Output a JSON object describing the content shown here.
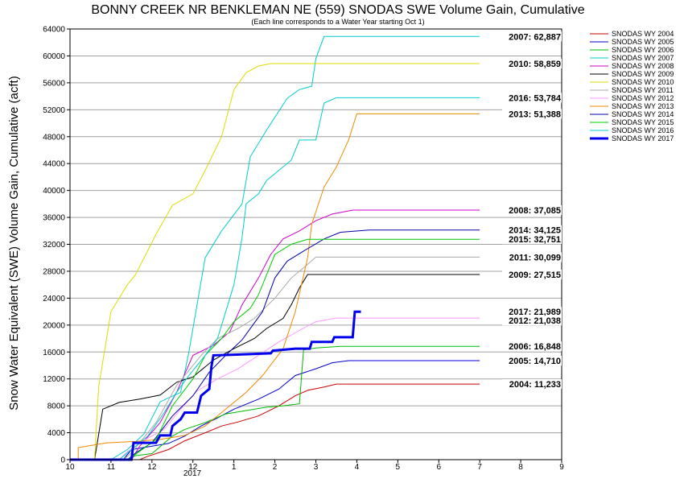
{
  "chart_data": {
    "type": "line",
    "title": "BONNY CREEK NR BENKLEMAN NE (559) SNODAS SWE Volume Gain, Cumulative",
    "subtitle": "(Each line corresponds to a Water Year starting Oct 1)",
    "ylabel": "Snow Water Equivalent (SWE) Volume Gain, Cumulative (acft)",
    "xlabel": "",
    "year_label": "2017",
    "ylim": [
      0,
      64000
    ],
    "xlim": [
      10,
      22
    ],
    "y_ticks": [
      "0",
      "4000",
      "8000",
      "12000",
      "16000",
      "20000",
      "24000",
      "28000",
      "32000",
      "36000",
      "40000",
      "44000",
      "48000",
      "52000",
      "56000",
      "60000",
      "64000"
    ],
    "x_ticks": [
      "10",
      "11",
      "12",
      "12",
      "1",
      "2",
      "3",
      "4",
      "5",
      "6",
      "7",
      "8",
      "9"
    ],
    "grid": "horizontal",
    "legend_position": "right",
    "series": [
      {
        "name": "SNODAS WY 2004",
        "color": "#cc0000",
        "width": 1,
        "end_label": "2004: 11,233",
        "points": [
          [
            10,
            0
          ],
          [
            11.7,
            0
          ],
          [
            11.9,
            500
          ],
          [
            12.4,
            1500
          ],
          [
            12.8,
            2800
          ],
          [
            13.3,
            4000
          ],
          [
            13.7,
            5000
          ],
          [
            14.1,
            5600
          ],
          [
            14.6,
            6500
          ],
          [
            15.1,
            8000
          ],
          [
            15.5,
            9500
          ],
          [
            15.8,
            10300
          ],
          [
            16.2,
            10800
          ],
          [
            16.5,
            11233
          ],
          [
            20,
            11233
          ]
        ]
      },
      {
        "name": "SNODAS WY 2005",
        "color": "#0000cc",
        "width": 1,
        "end_label": "2005: 14,710",
        "points": [
          [
            10,
            0
          ],
          [
            11.3,
            0
          ],
          [
            11.5,
            1500
          ],
          [
            12.0,
            2000
          ],
          [
            12.4,
            2400
          ],
          [
            12.8,
            3500
          ],
          [
            13.2,
            5000
          ],
          [
            13.6,
            6200
          ],
          [
            14.0,
            7500
          ],
          [
            14.6,
            9000
          ],
          [
            15.1,
            10500
          ],
          [
            15.5,
            12500
          ],
          [
            16.0,
            13500
          ],
          [
            16.4,
            14400
          ],
          [
            16.8,
            14710
          ],
          [
            20,
            14710
          ]
        ]
      },
      {
        "name": "SNODAS WY 2006",
        "color": "#00bb00",
        "width": 1,
        "end_label": "2006: 16,848",
        "points": [
          [
            10,
            0
          ],
          [
            11.4,
            0
          ],
          [
            11.6,
            600
          ],
          [
            12.0,
            900
          ],
          [
            12.5,
            3500
          ],
          [
            12.8,
            4500
          ],
          [
            13.3,
            5500
          ],
          [
            13.8,
            6800
          ],
          [
            14.3,
            7300
          ],
          [
            14.8,
            7800
          ],
          [
            15.2,
            8000
          ],
          [
            15.6,
            8300
          ],
          [
            15.7,
            16300
          ],
          [
            16.0,
            16600
          ],
          [
            16.6,
            16848
          ],
          [
            20,
            16848
          ]
        ]
      },
      {
        "name": "SNODAS WY 2007",
        "color": "#00cccc",
        "width": 1,
        "end_label": "2007: 62,887",
        "points": [
          [
            10,
            0
          ],
          [
            11.0,
            0
          ],
          [
            11.4,
            1500
          ],
          [
            11.8,
            3800
          ],
          [
            12.2,
            8600
          ],
          [
            12.7,
            10000
          ],
          [
            12.9,
            16000
          ],
          [
            13.3,
            30000
          ],
          [
            13.7,
            34000
          ],
          [
            14.2,
            38000
          ],
          [
            14.4,
            45000
          ],
          [
            14.8,
            49000
          ],
          [
            15.3,
            53700
          ],
          [
            15.6,
            55000
          ],
          [
            15.9,
            55500
          ],
          [
            16.0,
            59600
          ],
          [
            16.2,
            62887
          ],
          [
            20,
            62887
          ]
        ]
      },
      {
        "name": "SNODAS WY 2008",
        "color": "#cc00cc",
        "width": 1,
        "end_label": "2008: 37,085",
        "points": [
          [
            10,
            0
          ],
          [
            11.5,
            0
          ],
          [
            11.7,
            2000
          ],
          [
            12.2,
            5500
          ],
          [
            12.6,
            10000
          ],
          [
            13.0,
            15500
          ],
          [
            13.5,
            17000
          ],
          [
            13.9,
            19000
          ],
          [
            14.2,
            23000
          ],
          [
            14.6,
            27000
          ],
          [
            14.9,
            30500
          ],
          [
            15.2,
            32800
          ],
          [
            15.6,
            34000
          ],
          [
            16.0,
            35500
          ],
          [
            16.4,
            36500
          ],
          [
            16.9,
            37085
          ],
          [
            20,
            37085
          ]
        ]
      },
      {
        "name": "SNODAS WY 2009",
        "color": "#000000",
        "width": 1,
        "end_label": "2009: 27,515",
        "points": [
          [
            10,
            0
          ],
          [
            10.6,
            0
          ],
          [
            10.8,
            7500
          ],
          [
            11.2,
            8500
          ],
          [
            11.7,
            9000
          ],
          [
            12.2,
            9600
          ],
          [
            12.6,
            11500
          ],
          [
            13.0,
            12300
          ],
          [
            13.5,
            14800
          ],
          [
            14.0,
            16500
          ],
          [
            14.5,
            18000
          ],
          [
            14.8,
            19500
          ],
          [
            15.2,
            21000
          ],
          [
            15.4,
            23000
          ],
          [
            15.6,
            25500
          ],
          [
            15.8,
            27515
          ],
          [
            20,
            27515
          ]
        ]
      },
      {
        "name": "SNODAS WY 2010",
        "color": "#dddd00",
        "width": 1,
        "end_label": "2010: 58,859",
        "points": [
          [
            10,
            0
          ],
          [
            10.6,
            0
          ],
          [
            10.7,
            10800
          ],
          [
            11.0,
            22000
          ],
          [
            11.4,
            26000
          ],
          [
            11.6,
            27500
          ],
          [
            12.1,
            33500
          ],
          [
            12.5,
            37800
          ],
          [
            13.0,
            39500
          ],
          [
            13.3,
            43000
          ],
          [
            13.7,
            48000
          ],
          [
            14.0,
            55000
          ],
          [
            14.3,
            57500
          ],
          [
            14.6,
            58500
          ],
          [
            14.9,
            58859
          ],
          [
            20,
            58859
          ]
        ]
      },
      {
        "name": "SNODAS WY 2011",
        "color": "#aaaaaa",
        "width": 1,
        "end_label": "2011: 30,099",
        "points": [
          [
            10,
            0
          ],
          [
            11.3,
            0
          ],
          [
            11.5,
            1000
          ],
          [
            12.1,
            5500
          ],
          [
            12.6,
            11000
          ],
          [
            13.2,
            15500
          ],
          [
            13.6,
            18000
          ],
          [
            14.1,
            19500
          ],
          [
            14.5,
            21000
          ],
          [
            15.0,
            24000
          ],
          [
            15.4,
            27000
          ],
          [
            15.7,
            28500
          ],
          [
            16.0,
            30099
          ],
          [
            20,
            30099
          ]
        ]
      },
      {
        "name": "SNODAS WY 2012",
        "color": "#ff99ff",
        "width": 1,
        "end_label": "2012: 21,038",
        "points": [
          [
            10,
            0
          ],
          [
            11.2,
            0
          ],
          [
            11.4,
            1200
          ],
          [
            11.9,
            3200
          ],
          [
            12.3,
            4500
          ],
          [
            12.7,
            7500
          ],
          [
            13.1,
            10200
          ],
          [
            13.6,
            12000
          ],
          [
            14.1,
            13500
          ],
          [
            14.6,
            15500
          ],
          [
            15.1,
            17500
          ],
          [
            15.6,
            19200
          ],
          [
            16.0,
            20500
          ],
          [
            16.5,
            21038
          ],
          [
            20,
            21038
          ]
        ]
      },
      {
        "name": "SNODAS WY 2013",
        "color": "#ee8800",
        "width": 1,
        "end_label": "2013: 51,388",
        "points": [
          [
            10,
            0
          ],
          [
            10.2,
            0
          ],
          [
            10.2,
            1800
          ],
          [
            10.9,
            2500
          ],
          [
            11.6,
            2700
          ],
          [
            12.2,
            3000
          ],
          [
            12.8,
            3600
          ],
          [
            13.3,
            5000
          ],
          [
            13.8,
            7500
          ],
          [
            14.3,
            10000
          ],
          [
            14.7,
            12500
          ],
          [
            15.2,
            16500
          ],
          [
            15.5,
            22000
          ],
          [
            15.8,
            30000
          ],
          [
            15.9,
            35000
          ],
          [
            16.2,
            40500
          ],
          [
            16.5,
            43500
          ],
          [
            16.8,
            47500
          ],
          [
            17.0,
            51388
          ],
          [
            20,
            51388
          ]
        ]
      },
      {
        "name": "SNODAS WY 2014",
        "color": "#0000aa",
        "width": 1,
        "end_label": "2014: 34,125",
        "points": [
          [
            10,
            0
          ],
          [
            11.4,
            0
          ],
          [
            11.6,
            1000
          ],
          [
            12.0,
            2500
          ],
          [
            12.5,
            6500
          ],
          [
            13.0,
            9500
          ],
          [
            13.4,
            13000
          ],
          [
            13.8,
            15500
          ],
          [
            14.2,
            17800
          ],
          [
            14.7,
            22000
          ],
          [
            15.0,
            27000
          ],
          [
            15.3,
            29500
          ],
          [
            15.7,
            31000
          ],
          [
            16.2,
            32800
          ],
          [
            16.6,
            33800
          ],
          [
            17.3,
            34125
          ],
          [
            20,
            34125
          ]
        ]
      },
      {
        "name": "SNODAS WY 2015",
        "color": "#00cc00",
        "width": 1,
        "end_label": "2015: 32,751",
        "points": [
          [
            10,
            0
          ],
          [
            11.4,
            0
          ],
          [
            11.6,
            800
          ],
          [
            12.1,
            3000
          ],
          [
            12.5,
            8000
          ],
          [
            13.0,
            12000
          ],
          [
            13.3,
            15500
          ],
          [
            13.7,
            18000
          ],
          [
            14.0,
            20500
          ],
          [
            14.4,
            22500
          ],
          [
            14.6,
            24500
          ],
          [
            14.8,
            27500
          ],
          [
            15.0,
            30500
          ],
          [
            15.4,
            32000
          ],
          [
            15.8,
            32751
          ],
          [
            20,
            32751
          ]
        ]
      },
      {
        "name": "SNODAS WY 2016",
        "color": "#00cccc",
        "width": 1,
        "end_label": "2016: 53,784",
        "points": [
          [
            10,
            0
          ],
          [
            11.2,
            0
          ],
          [
            11.5,
            1500
          ],
          [
            11.9,
            3500
          ],
          [
            12.3,
            7000
          ],
          [
            12.6,
            10000
          ],
          [
            12.9,
            12500
          ],
          [
            13.3,
            15500
          ],
          [
            13.6,
            18000
          ],
          [
            14.0,
            26000
          ],
          [
            14.1,
            29500
          ],
          [
            14.2,
            33000
          ],
          [
            14.3,
            38000
          ],
          [
            14.6,
            39500
          ],
          [
            14.8,
            41500
          ],
          [
            15.0,
            42500
          ],
          [
            15.4,
            44500
          ],
          [
            15.6,
            47500
          ],
          [
            16.0,
            47500
          ],
          [
            16.2,
            53000
          ],
          [
            16.5,
            53784
          ],
          [
            20,
            53784
          ]
        ]
      },
      {
        "name": "SNODAS WY 2017",
        "color": "#0000ee",
        "width": 3,
        "end_label": "2017: 21,989",
        "points": [
          [
            10,
            0
          ],
          [
            11.5,
            0
          ],
          [
            11.55,
            2500
          ],
          [
            12.1,
            2500
          ],
          [
            12.2,
            3600
          ],
          [
            12.45,
            3600
          ],
          [
            12.5,
            5000
          ],
          [
            12.7,
            6000
          ],
          [
            12.8,
            7000
          ],
          [
            13.1,
            7000
          ],
          [
            13.2,
            9500
          ],
          [
            13.4,
            10500
          ],
          [
            13.45,
            13800
          ],
          [
            13.5,
            15500
          ],
          [
            14.0,
            15600
          ],
          [
            14.9,
            15800
          ],
          [
            14.95,
            16200
          ],
          [
            15.5,
            16500
          ],
          [
            15.85,
            16500
          ],
          [
            15.9,
            17500
          ],
          [
            16.4,
            17500
          ],
          [
            16.45,
            18200
          ],
          [
            16.9,
            18200
          ],
          [
            16.95,
            21989
          ],
          [
            17.1,
            21989
          ]
        ]
      }
    ]
  }
}
